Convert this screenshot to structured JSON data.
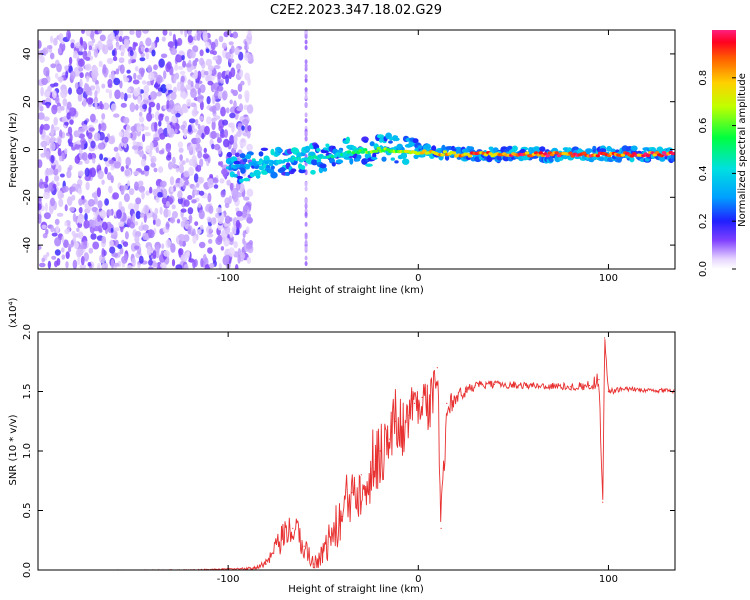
{
  "title": "C2E2.2023.347.18.02.G29",
  "chart_data": [
    {
      "type": "heatmap",
      "xlabel": "Height of straight line (km)",
      "ylabel": "Frequency (Hz)",
      "xlim": [
        -200,
        135
      ],
      "ylim": [
        -50,
        50
      ],
      "x_ticks": [
        "-100",
        "0",
        "100"
      ],
      "y_ticks": [
        "-40",
        "-20",
        "0",
        "20",
        "40"
      ],
      "colorbar": {
        "label": "Normalized spectral amplitude",
        "range": [
          0,
          1
        ],
        "ticks": [
          "0.0",
          "0.2",
          "0.4",
          "0.6",
          "0.8"
        ]
      },
      "signal_track": [
        {
          "x": -100,
          "freq": -8,
          "amp": 0.35
        },
        {
          "x": -80,
          "freq": -5,
          "amp": 0.4
        },
        {
          "x": -60,
          "freq": -4,
          "amp": 0.45
        },
        {
          "x": -40,
          "freq": -2,
          "amp": 0.5
        },
        {
          "x": -20,
          "freq": 0,
          "amp": 0.7
        },
        {
          "x": 0,
          "freq": -1,
          "amp": 0.8
        },
        {
          "x": 20,
          "freq": -2,
          "amp": 0.9
        },
        {
          "x": 60,
          "freq": -2,
          "amp": 1.0
        },
        {
          "x": 100,
          "freq": -2,
          "amp": 1.0
        },
        {
          "x": 135,
          "freq": -2,
          "amp": 1.0
        }
      ]
    },
    {
      "type": "line",
      "xlabel": "Height of straight line (km)",
      "ylabel": "SNR (10 * v/v)",
      "y_multiplier": "(x10⁴)",
      "xlim": [
        -200,
        135
      ],
      "ylim": [
        0,
        2.0
      ],
      "x_ticks": [
        "-100",
        "0",
        "100"
      ],
      "y_ticks": [
        "0.0",
        "0.5",
        "1.0",
        "1.5",
        "2.0"
      ],
      "series": [
        {
          "color": "#e83030",
          "x": [
            -200,
            -120,
            -90,
            -80,
            -72,
            -66,
            -60,
            -55,
            -50,
            -45,
            -40,
            -35,
            -30,
            -25,
            -20,
            -15,
            -12,
            -8,
            -5,
            -2,
            2,
            6,
            10,
            12,
            15,
            20,
            25,
            30,
            40,
            60,
            80,
            90,
            95,
            97,
            98,
            100,
            110,
            120,
            125,
            130,
            135
          ],
          "y": [
            0.0,
            0.0,
            0.01,
            0.05,
            0.25,
            0.35,
            0.2,
            0.05,
            0.15,
            0.3,
            0.45,
            0.65,
            0.8,
            0.85,
            1.0,
            1.1,
            1.25,
            1.2,
            1.3,
            1.4,
            1.45,
            1.35,
            1.7,
            0.35,
            1.4,
            1.45,
            1.5,
            1.55,
            1.56,
            1.55,
            1.54,
            1.55,
            1.6,
            0.57,
            1.95,
            1.5,
            1.52,
            1.51,
            1.5,
            1.52,
            1.5
          ],
          "noise": [
            0.0,
            0.003,
            0.01,
            0.04,
            0.12,
            0.15,
            0.12,
            0.05,
            0.12,
            0.18,
            0.25,
            0.3,
            0.35,
            0.35,
            0.3,
            0.28,
            0.3,
            0.25,
            0.25,
            0.2,
            0.2,
            0.2,
            0.2,
            0.2,
            0.12,
            0.08,
            0.05,
            0.04,
            0.03,
            0.03,
            0.03,
            0.04,
            0.08,
            0.05,
            0.05,
            0.03,
            0.02,
            0.02,
            0.02,
            0.02,
            0.02
          ]
        }
      ]
    }
  ]
}
